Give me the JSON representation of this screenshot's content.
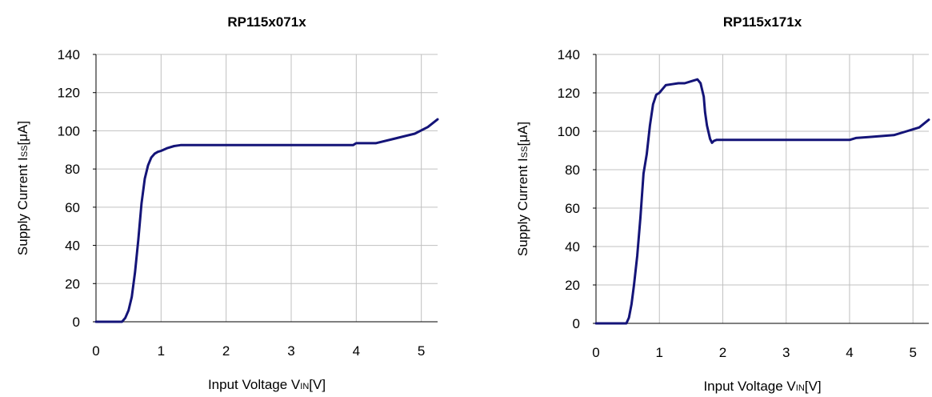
{
  "chart_data": [
    {
      "type": "line",
      "title": "RP115x071x",
      "xlabel": {
        "main": "Input Voltage V",
        "sub": "IN",
        "unit": "[V]"
      },
      "ylabel": {
        "main": "Supply Current I",
        "sub": "SS",
        "unit": "[μA]"
      },
      "xlim": [
        0,
        5.25
      ],
      "ylim": [
        0,
        140
      ],
      "x_ticks": [
        "0",
        "1",
        "2",
        "3",
        "4",
        "5"
      ],
      "y_ticks": [
        "0",
        "20",
        "40",
        "60",
        "80",
        "100",
        "120",
        "140"
      ],
      "grid": true,
      "line_color": "#141478",
      "series": [
        {
          "x": [
            0,
            0.4,
            0.45,
            0.5,
            0.55,
            0.6,
            0.65,
            0.7,
            0.75,
            0.8,
            0.85,
            0.9,
            0.95,
            1.0,
            1.1,
            1.2,
            1.3,
            1.5,
            2.0,
            2.5,
            3.0,
            3.5,
            3.95,
            4.0,
            4.3,
            4.6,
            4.9,
            5.1,
            5.25
          ],
          "y": [
            0,
            0,
            2,
            6,
            13,
            26,
            43,
            62,
            75,
            82,
            86,
            88,
            89,
            89.5,
            91,
            92,
            92.5,
            92.5,
            92.5,
            92.5,
            92.5,
            92.5,
            92.5,
            93.5,
            93.5,
            96,
            98.5,
            102,
            106
          ]
        }
      ]
    },
    {
      "type": "line",
      "title": "RP115x171x",
      "xlabel": {
        "main": "Input Voltage V",
        "sub": "IN",
        "unit": "[V]"
      },
      "ylabel": {
        "main": "Supply Current I",
        "sub": "SS",
        "unit": "[μA]"
      },
      "xlim": [
        0,
        5.25
      ],
      "ylim": [
        0,
        140
      ],
      "x_ticks": [
        "0",
        "1",
        "2",
        "3",
        "4",
        "5"
      ],
      "y_ticks": [
        "0",
        "20",
        "40",
        "60",
        "80",
        "100",
        "120",
        "140"
      ],
      "grid": true,
      "line_color": "#141478",
      "series": [
        {
          "x": [
            0,
            0.48,
            0.52,
            0.56,
            0.6,
            0.65,
            0.7,
            0.75,
            0.8,
            0.85,
            0.9,
            0.95,
            1.0,
            1.05,
            1.1,
            1.2,
            1.3,
            1.4,
            1.5,
            1.6,
            1.65,
            1.7,
            1.72,
            1.75,
            1.8,
            1.83,
            1.86,
            1.9,
            2.0,
            2.5,
            3.0,
            3.5,
            4.0,
            4.1,
            4.3,
            4.5,
            4.7,
            4.9,
            5.1,
            5.25
          ],
          "y": [
            0,
            0,
            3,
            10,
            20,
            35,
            55,
            78,
            88,
            103,
            114,
            119,
            120,
            122,
            124,
            124.5,
            125,
            125,
            126,
            127,
            125,
            118,
            110,
            103,
            96,
            94,
            95,
            95.5,
            95.5,
            95.5,
            95.5,
            95.5,
            95.5,
            96.5,
            97,
            97.5,
            98,
            100,
            102,
            106
          ]
        }
      ]
    }
  ]
}
